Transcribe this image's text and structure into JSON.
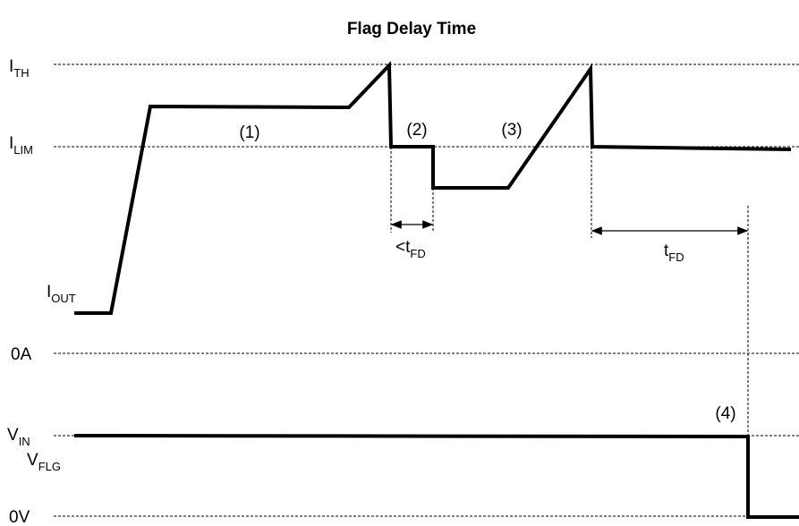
{
  "title": "Flag Delay Time",
  "levels": {
    "ith": {
      "main": "I",
      "sub": "TH"
    },
    "ilim": {
      "main": "I",
      "sub": "LIM"
    },
    "iout": {
      "main": "I",
      "sub": "OUT"
    },
    "zero_a": "0A",
    "vin": {
      "main": "V",
      "sub": "IN"
    },
    "vflg": {
      "main": "V",
      "sub": "FLG"
    },
    "zero_v": "0V"
  },
  "annotations": [
    "(1)",
    "(2)",
    "(3)",
    "(4)"
  ],
  "intervals": {
    "short": {
      "main": "<t",
      "sub": "FD"
    },
    "full": {
      "main": "t",
      "sub": "FD"
    }
  }
}
